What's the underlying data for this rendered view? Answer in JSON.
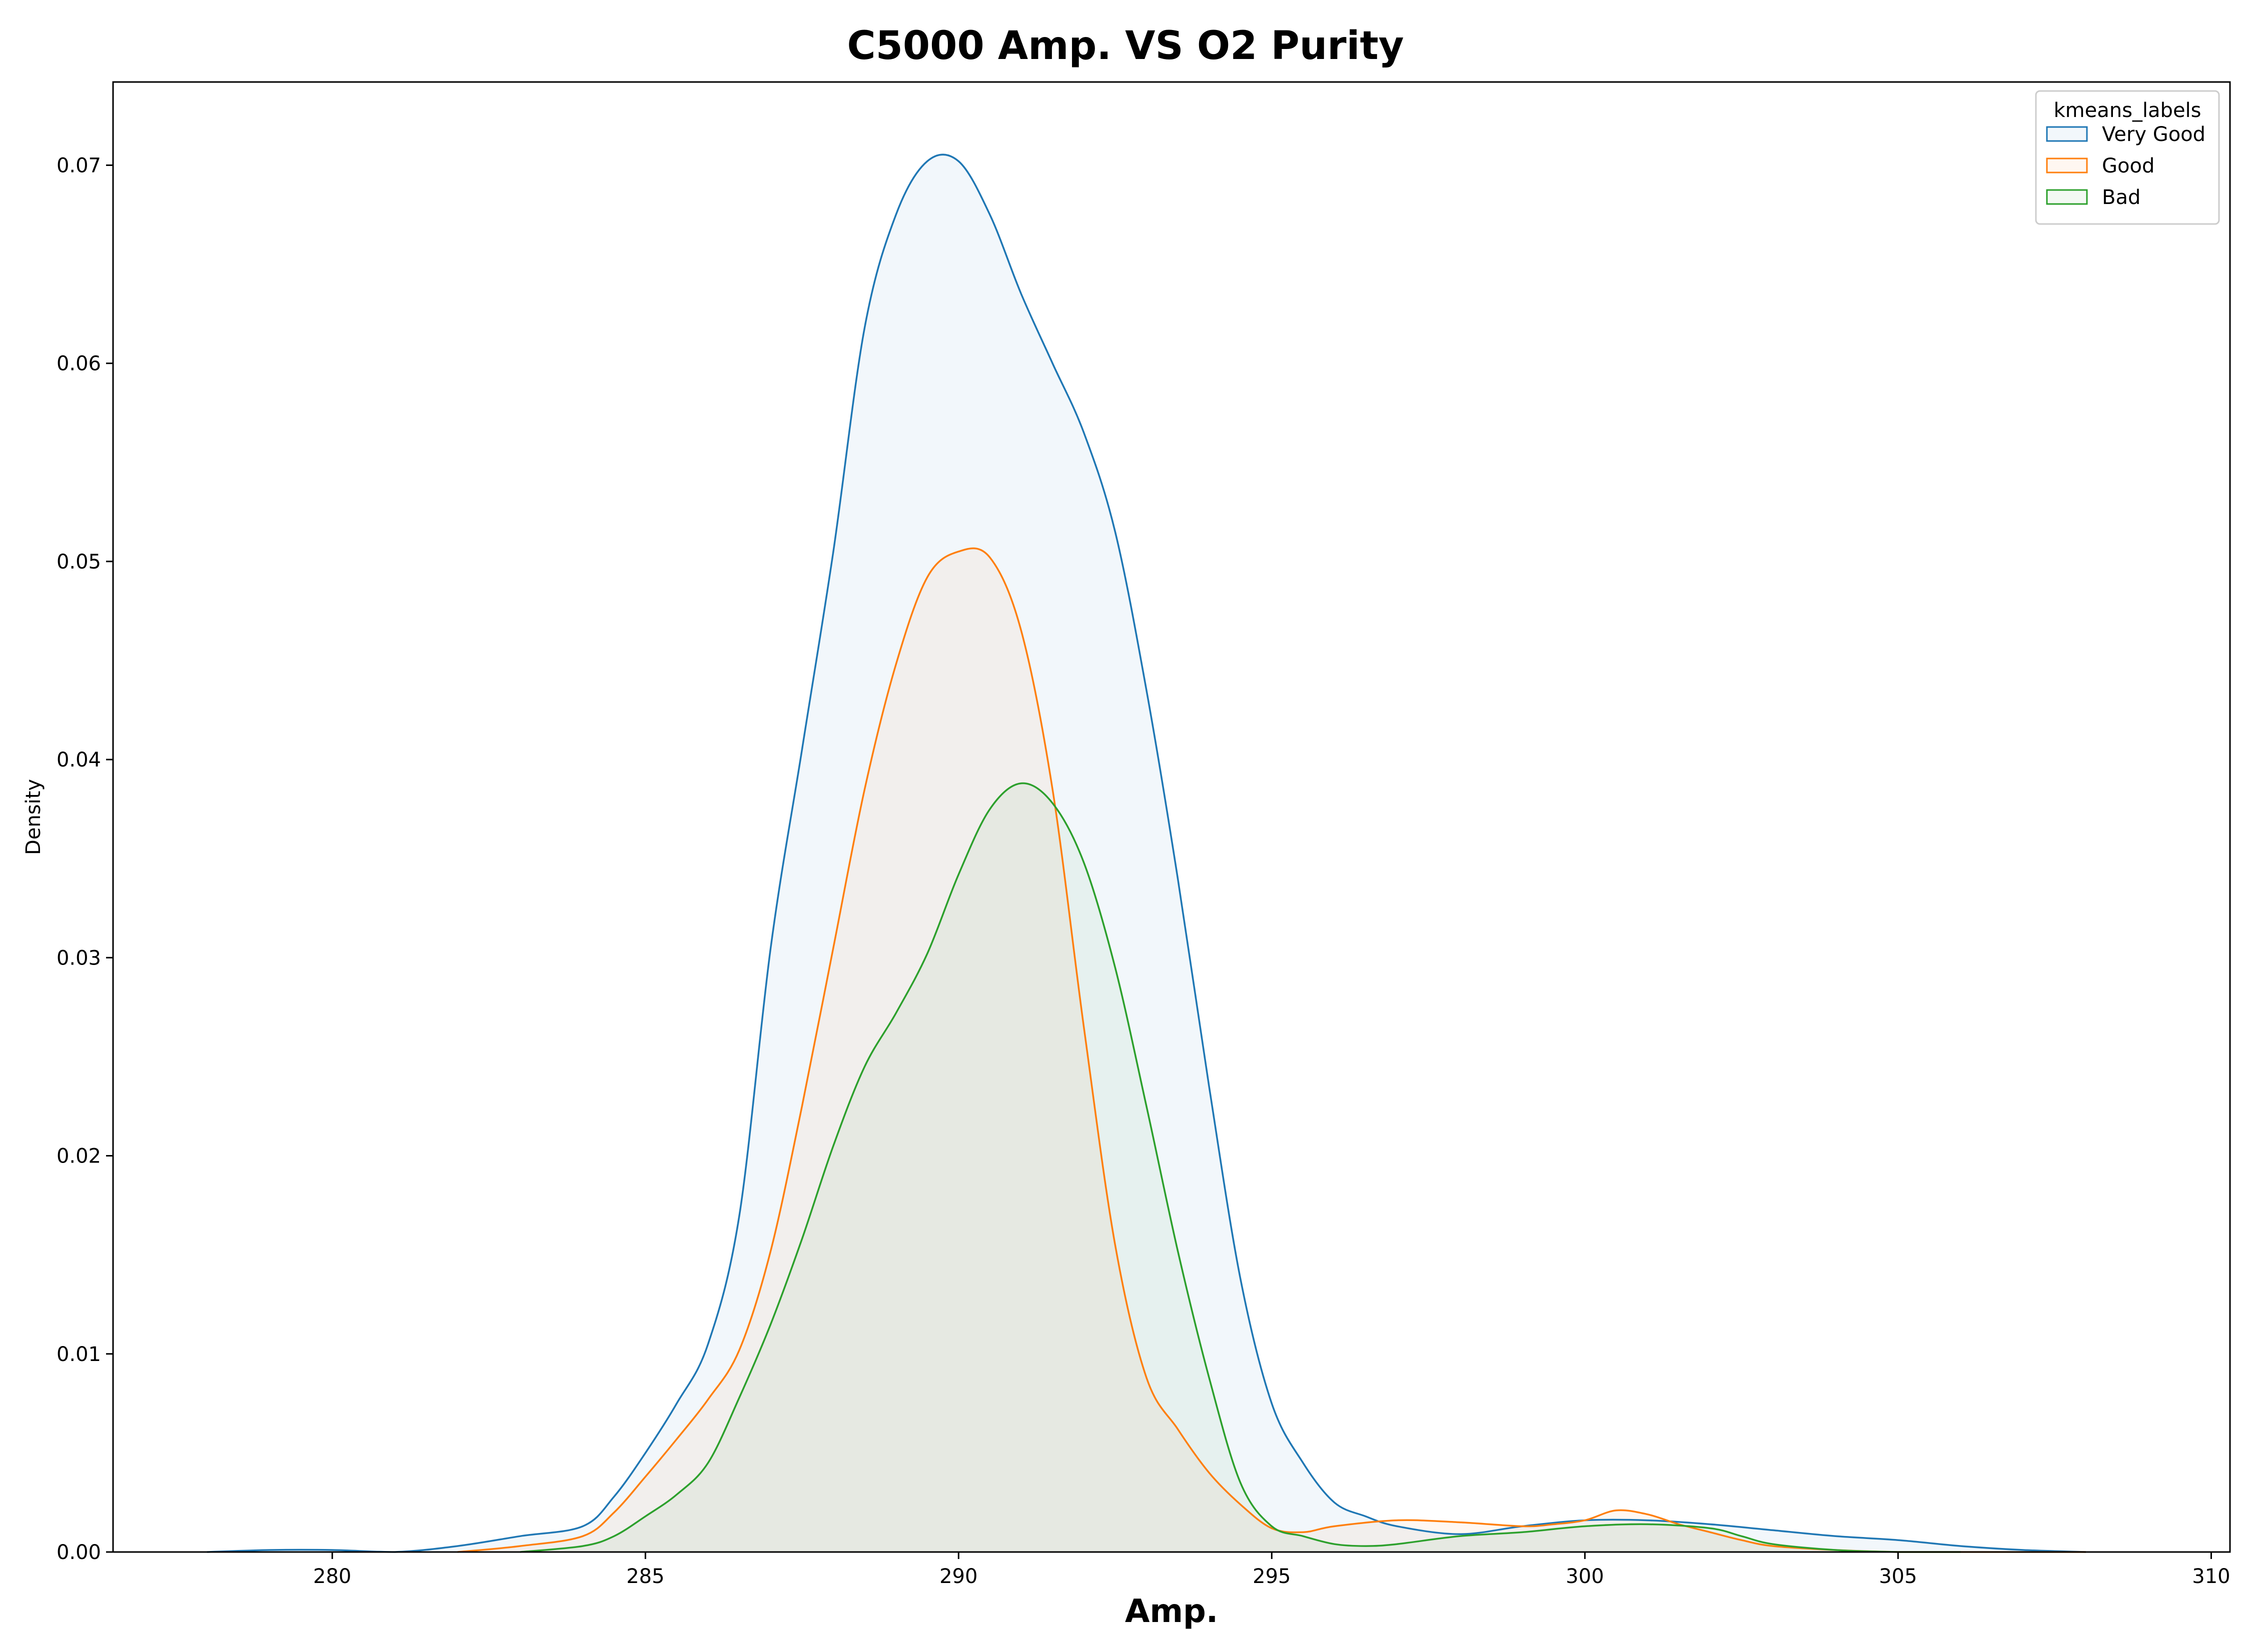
{
  "chart_data": {
    "type": "area",
    "title": "C5000 Amp. VS O2 Purity",
    "xlabel": "Amp.",
    "ylabel": "Density",
    "xlim": [
      276.5,
      310.3
    ],
    "ylim": [
      0,
      0.0742
    ],
    "x_ticks": [
      280,
      285,
      290,
      295,
      300,
      305,
      310
    ],
    "x_tick_labels": [
      "280",
      "285",
      "290",
      "295",
      "300",
      "305",
      "310"
    ],
    "y_ticks": [
      0.0,
      0.01,
      0.02,
      0.03,
      0.04,
      0.05,
      0.06,
      0.07
    ],
    "y_tick_labels": [
      "0.00",
      "0.01",
      "0.02",
      "0.03",
      "0.04",
      "0.05",
      "0.06",
      "0.07"
    ],
    "grid": false,
    "legend": {
      "title": "kmeans_labels",
      "placement": "top-right"
    },
    "series": [
      {
        "name": "Very Good",
        "color": "#1f77b4",
        "x": [
          278,
          279,
          280,
          281,
          282,
          283,
          284,
          284.5,
          285,
          285.5,
          286,
          286.5,
          287,
          287.5,
          288,
          288.5,
          289,
          289.5,
          290,
          290.5,
          291,
          291.5,
          292,
          292.5,
          293,
          293.5,
          294,
          294.5,
          295,
          295.5,
          296,
          296.5,
          297,
          298,
          299,
          300,
          301,
          302,
          303,
          304,
          305,
          306,
          307,
          308
        ],
        "y": [
          0.0,
          0.0001,
          0.0001,
          0.0,
          0.0003,
          0.0008,
          0.0013,
          0.0028,
          0.005,
          0.0075,
          0.0105,
          0.017,
          0.0305,
          0.0405,
          0.0505,
          0.0618,
          0.0675,
          0.0702,
          0.0702,
          0.0675,
          0.0635,
          0.06,
          0.0565,
          0.0515,
          0.0435,
          0.034,
          0.0235,
          0.0138,
          0.0075,
          0.0045,
          0.0025,
          0.0018,
          0.0013,
          0.0009,
          0.0013,
          0.0016,
          0.0016,
          0.0014,
          0.0011,
          0.0008,
          0.0006,
          0.0003,
          0.0001,
          0.0
        ],
        "fill_opacity": 0.06
      },
      {
        "name": "Good",
        "color": "#ff7f0e",
        "x": [
          282,
          283,
          284,
          284.5,
          285,
          285.5,
          286,
          286.5,
          287,
          287.5,
          288,
          288.5,
          289,
          289.5,
          290,
          290.5,
          291,
          291.5,
          292,
          292.5,
          293,
          293.5,
          294,
          294.5,
          295,
          295.5,
          296,
          297,
          298,
          299,
          299.5,
          300,
          300.5,
          301,
          301.5,
          302,
          302.5,
          303,
          304,
          305,
          306,
          307,
          308
        ],
        "y": [
          0.0,
          0.0003,
          0.0008,
          0.002,
          0.0038,
          0.0057,
          0.0077,
          0.0102,
          0.0152,
          0.0225,
          0.0305,
          0.0385,
          0.0448,
          0.0492,
          0.0505,
          0.0502,
          0.0465,
          0.0385,
          0.0265,
          0.0155,
          0.0088,
          0.0062,
          0.004,
          0.0024,
          0.0012,
          0.001,
          0.0013,
          0.0016,
          0.0015,
          0.0013,
          0.0014,
          0.0016,
          0.0021,
          0.0019,
          0.0014,
          0.001,
          0.0006,
          0.0003,
          0.0001,
          0.0,
          0.0,
          0.0,
          0.0
        ],
        "fill_opacity": 0.06
      },
      {
        "name": "Bad",
        "color": "#2ca02c",
        "x": [
          283,
          284,
          284.5,
          285,
          285.5,
          286,
          286.5,
          287,
          287.5,
          288,
          288.5,
          289,
          289.5,
          290,
          290.5,
          291,
          291.5,
          292,
          292.5,
          293,
          293.5,
          294,
          294.5,
          295,
          295.5,
          296,
          296.5,
          297,
          298,
          299,
          300,
          301,
          302,
          302.5,
          303,
          304,
          305,
          306
        ],
        "y": [
          0.0,
          0.0003,
          0.0008,
          0.0018,
          0.0029,
          0.0045,
          0.0078,
          0.0115,
          0.0158,
          0.0205,
          0.0245,
          0.0272,
          0.0302,
          0.0342,
          0.0375,
          0.0388,
          0.0378,
          0.0348,
          0.0295,
          0.0225,
          0.0152,
          0.0088,
          0.0035,
          0.0013,
          0.0008,
          0.0004,
          0.0003,
          0.0004,
          0.0008,
          0.001,
          0.0013,
          0.0014,
          0.0012,
          0.0008,
          0.0004,
          0.0001,
          0.0,
          0.0
        ],
        "fill_opacity": 0.06
      }
    ]
  }
}
